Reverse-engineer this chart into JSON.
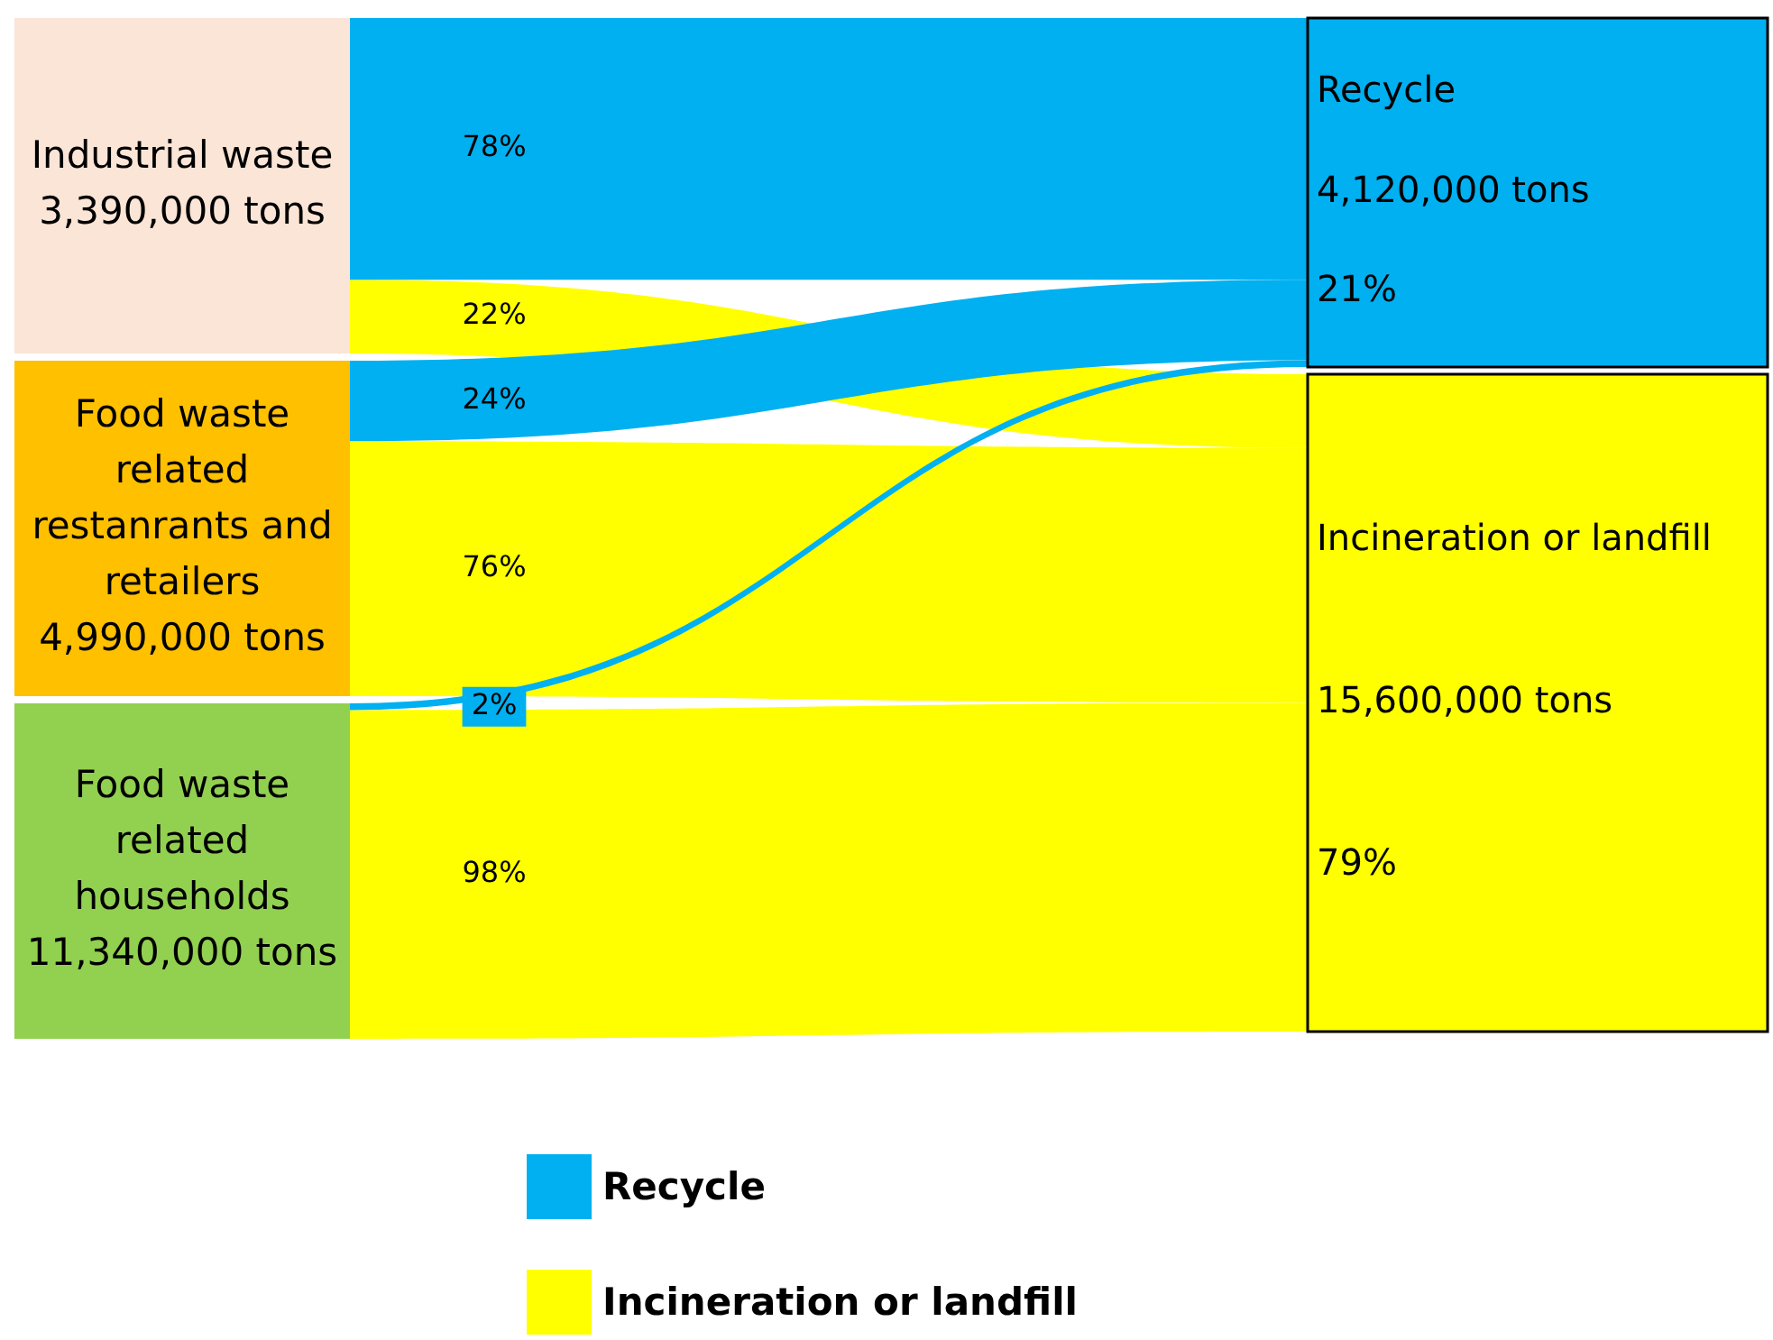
{
  "chart_data": {
    "type": "other",
    "categories": [
      "Industrial waste 3,390,000 tons",
      "Food waste related restanrants and retailers 4,990,000 tons",
      "Food waste related households 11,340,000 tons"
    ],
    "colors": [
      "#fbe5d6",
      "#ffc000",
      "#92d050"
    ],
    "series": [
      {
        "name": "Recycle",
        "color": "#00b0f0",
        "values": [
          78,
          24,
          2
        ],
        "value_labels": [
          "78%",
          "24%",
          "2%"
        ]
      },
      {
        "name": "Incineration or landfill",
        "color": "#ffff00",
        "values": [
          22,
          76,
          98
        ],
        "value_labels": [
          "22%",
          "76%",
          "98%"
        ]
      }
    ],
    "annotations": [
      "Recycle\n4,120,000 tons\n21%",
      "Incineration or landfill\n15,600,000 tons\n79%"
    ],
    "legend": "bottom left"
  }
}
